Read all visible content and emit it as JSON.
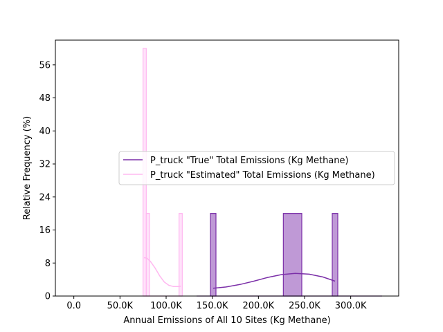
{
  "chart_data": {
    "type": "histogram",
    "title": "",
    "xlabel": "Annual Emissions of All 10 Sites (Kg Methane)",
    "ylabel": "Relative Frequency (%)",
    "xlim": [
      -20000,
      352000
    ],
    "ylim": [
      0,
      62
    ],
    "x_ticks": [
      {
        "value": 0,
        "label": "0.0"
      },
      {
        "value": 50000,
        "label": "50.0K"
      },
      {
        "value": 100000,
        "label": "100.0K"
      },
      {
        "value": 150000,
        "label": "150.0K"
      },
      {
        "value": 200000,
        "label": "200.0K"
      },
      {
        "value": 250000,
        "label": "250.0K"
      },
      {
        "value": 300000,
        "label": "300.0K"
      }
    ],
    "y_ticks": [
      {
        "value": 0,
        "label": "0"
      },
      {
        "value": 8,
        "label": "8"
      },
      {
        "value": 16,
        "label": "16"
      },
      {
        "value": 24,
        "label": "24"
      },
      {
        "value": 32,
        "label": "32"
      },
      {
        "value": 40,
        "label": "40"
      },
      {
        "value": 48,
        "label": "48"
      },
      {
        "value": 56,
        "label": "56"
      }
    ],
    "grid": false,
    "legend_position": "center-right",
    "series": [
      {
        "name": "P_truck \"True\" Total Emissions (Kg Methane)",
        "color": "#7B2FA8",
        "fill": "#BF99D6",
        "bins": [
          {
            "x0": 148000,
            "x1": 154000,
            "value": 20
          },
          {
            "x0": 227000,
            "x1": 247000,
            "value": 20
          },
          {
            "x0": 280000,
            "x1": 286000,
            "value": 20
          }
        ],
        "baseline_range": [
          133000,
          334000
        ],
        "kde": [
          [
            151000,
            1.9
          ],
          [
            165000,
            2.2
          ],
          [
            180000,
            2.8
          ],
          [
            195000,
            3.6
          ],
          [
            210000,
            4.5
          ],
          [
            225000,
            5.2
          ],
          [
            240000,
            5.5
          ],
          [
            255000,
            5.3
          ],
          [
            270000,
            4.6
          ],
          [
            283000,
            3.6
          ]
        ]
      },
      {
        "name": "P_truck \"Estimated\" Total Emissions (Kg Methane)",
        "color": "#FFB8F0",
        "fill": "#FFE3FA",
        "bins": [
          {
            "x0": 75000,
            "x1": 78500,
            "value": 60
          },
          {
            "x0": 78500,
            "x1": 82000,
            "value": 20
          },
          {
            "x0": 114000,
            "x1": 117500,
            "value": 20
          }
        ],
        "baseline_range": [
          75000,
          117500
        ],
        "kde": [
          [
            76000,
            9.3
          ],
          [
            79000,
            9.2
          ],
          [
            83000,
            8.4
          ],
          [
            88000,
            6.8
          ],
          [
            93000,
            4.9
          ],
          [
            98000,
            3.4
          ],
          [
            103000,
            2.6
          ],
          [
            108000,
            2.3
          ],
          [
            113000,
            2.3
          ],
          [
            116000,
            2.4
          ]
        ]
      }
    ]
  }
}
